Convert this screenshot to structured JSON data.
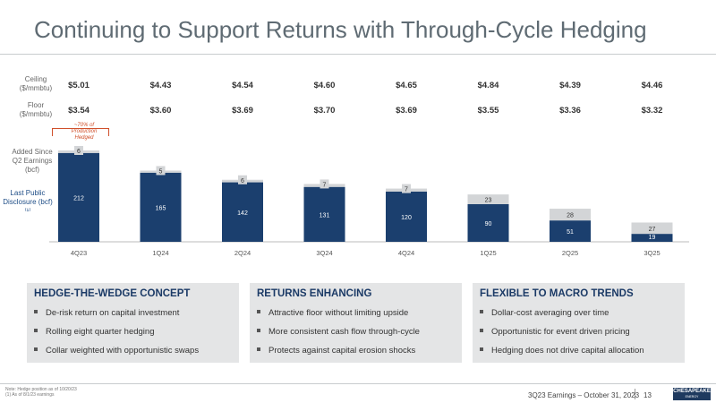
{
  "page": {
    "title": "Continuing to Support Returns with Through-Cycle Hedging",
    "footnote_1": "Note: Hedge position as of 10/20/23",
    "footnote_2": "(1)   As of 8/1/23 earnings",
    "footer_text": "3Q23 Earnings – October 31, 2023",
    "page_number": "13",
    "logo_text": "CHESAPEAKE",
    "logo_sub": "ENERGY"
  },
  "labels": {
    "ceiling": "Ceiling ($/mmbtu)",
    "floor": "Floor ($/mmbtu)",
    "added": "Added Since Q2 Earnings (bcf)",
    "last_public": "Last Public Disclosure (bcf)⁽¹⁾",
    "pct_hedged": "~70% of Production Hedged"
  },
  "chart_data": {
    "type": "bar",
    "stacked": true,
    "categories": [
      "4Q23",
      "1Q24",
      "2Q24",
      "3Q24",
      "4Q24",
      "1Q25",
      "2Q25",
      "3Q25"
    ],
    "series": [
      {
        "name": "Last Public Disclosure (bcf)",
        "color": "#1b3f6e",
        "values": [
          212,
          165,
          142,
          131,
          120,
          90,
          51,
          19
        ]
      },
      {
        "name": "Added Since Q2 Earnings (bcf)",
        "color": "#d3d5d7",
        "values": [
          6,
          5,
          6,
          7,
          7,
          23,
          28,
          27
        ]
      }
    ],
    "ceiling": [
      "$5.01",
      "$4.43",
      "$4.54",
      "$4.60",
      "$4.65",
      "$4.84",
      "$4.39",
      "$4.46"
    ],
    "floor": [
      "$3.54",
      "$3.60",
      "$3.69",
      "$3.70",
      "$3.69",
      "$3.55",
      "$3.36",
      "$3.32"
    ],
    "ylim": [
      0,
      218
    ]
  },
  "cards": [
    {
      "title": "HEDGE-THE-WEDGE CONCEPT",
      "items": [
        "De-risk return on capital investment",
        "Rolling eight quarter hedging",
        "Collar weighted with opportunistic swaps"
      ]
    },
    {
      "title": "RETURNS ENHANCING",
      "items": [
        "Attractive floor without limiting upside",
        "More consistent cash flow through-cycle",
        "Protects against capital erosion shocks"
      ]
    },
    {
      "title": "FLEXIBLE TO MACRO TRENDS",
      "items": [
        "Dollar-cost averaging over time",
        "Opportunistic for event driven pricing",
        "Hedging does not drive capital allocation"
      ]
    }
  ]
}
